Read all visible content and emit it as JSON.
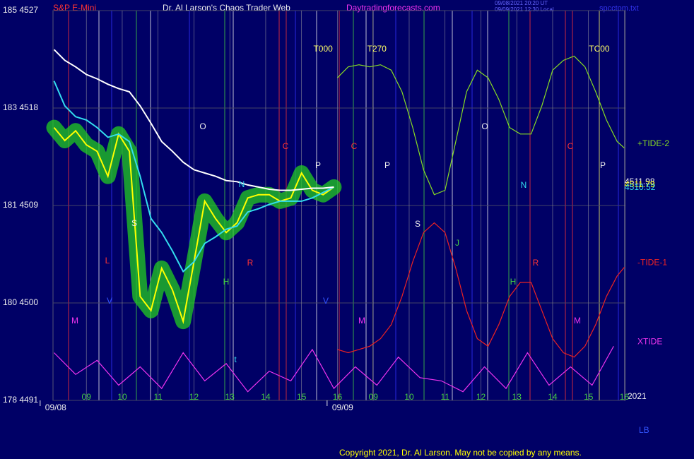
{
  "chart_data": {
    "type": "line",
    "title": "Dr. Al Larson's Chaos Trader Web",
    "symbol": "S&P E-Mini",
    "site": "Daytradingforecasts.com",
    "timestamps": [
      "09/08/2021 20:20 UT",
      "09/09/2021 12:30 Local"
    ],
    "file": "spcctom.txt",
    "copyright": "Copyright 2021, Dr. Al Larson. May not be copied by any means.",
    "corner_label": "LB",
    "year": "2021",
    "dates": [
      {
        "value": -0.5,
        "label": "09/08"
      },
      {
        "value": 7.5,
        "label": "09/09"
      }
    ],
    "cycle_labels": [
      {
        "value": 6.6,
        "label": "T000"
      },
      {
        "value": 8.1,
        "label": "T270"
      },
      {
        "value": 14.3,
        "label": "TC00"
      }
    ],
    "annotations": [
      "O",
      "P",
      "N",
      "S",
      "R",
      "M",
      "V",
      "H",
      "C",
      "J",
      "L",
      "t",
      "O",
      "P",
      "N",
      "S",
      "R",
      "M",
      "H",
      "C",
      "P",
      "M",
      "C",
      "V"
    ],
    "price_labels": [
      4511.98,
      4511.79,
      4510.52
    ],
    "xlim": [
      -0.93,
      15.03
    ],
    "xticks": [
      {
        "value": 0,
        "label": "09"
      },
      {
        "value": 1,
        "label": "10"
      },
      {
        "value": 2,
        "label": "11"
      },
      {
        "value": 3,
        "label": "12"
      },
      {
        "value": 4,
        "label": "13"
      },
      {
        "value": 5,
        "label": "14"
      },
      {
        "value": 6,
        "label": "15"
      },
      {
        "value": 7,
        "label": "16"
      },
      {
        "value": 8,
        "label": "09"
      },
      {
        "value": 9,
        "label": "10"
      },
      {
        "value": 10,
        "label": "11"
      },
      {
        "value": 11,
        "label": "12"
      },
      {
        "value": 12,
        "label": "13"
      },
      {
        "value": 13,
        "label": "14"
      },
      {
        "value": 14,
        "label": "15"
      },
      {
        "value": 15,
        "label": "16"
      }
    ],
    "ylim": [
      4491,
      4527
    ],
    "yticks": [
      {
        "value": 4527,
        "label": "185 4527"
      },
      {
        "value": 4518,
        "label": "183 4518"
      },
      {
        "value": 4509,
        "label": "181 4509"
      },
      {
        "value": 4500,
        "label": "180 4500"
      },
      {
        "value": 4491,
        "label": "178 4491"
      }
    ],
    "grid": true,
    "series": [
      {
        "name": "S&P E-Mini",
        "color": "#ffff00",
        "x": [
          -0.9,
          -0.6,
          -0.3,
          0,
          0.3,
          0.6,
          0.9,
          1.2,
          1.5,
          1.8,
          2.1,
          2.4,
          2.7,
          3.0,
          3.3,
          3.6,
          3.9,
          4.2,
          4.5,
          4.8,
          5.1,
          5.4,
          5.7,
          6.0,
          6.3,
          6.6,
          6.9
        ],
        "values": [
          4516.2,
          4515.0,
          4515.9,
          4514.6,
          4514.0,
          4511.7,
          4515.6,
          4514.0,
          4500.6,
          4499.3,
          4503.2,
          4501.2,
          4498.3,
          4503.8,
          4509.4,
          4507.8,
          4506.5,
          4507.4,
          4509.7,
          4510.0,
          4510.0,
          4509.4,
          4509.7,
          4512.0,
          4510.4,
          4510.0,
          4510.7
        ]
      },
      {
        "color": "#33ddee",
        "x": [
          -0.9,
          -0.6,
          -0.3,
          0,
          0.3,
          0.6,
          0.9,
          1.2,
          1.5,
          1.8,
          2.1,
          2.4,
          2.7,
          3.0,
          3.3,
          3.6,
          3.9,
          4.2,
          4.5,
          4.8,
          5.1,
          5.4,
          5.7,
          6.0,
          6.3,
          6.6,
          6.9
        ],
        "values": [
          4520.5,
          4518.2,
          4517.2,
          4516.9,
          4516.2,
          4515.3,
          4515.6,
          4514.9,
          4511.7,
          4507.8,
          4506.5,
          4504.8,
          4502.9,
          4503.8,
          4505.5,
          4506.1,
          4506.8,
          4507.1,
          4508.4,
          4508.7,
          4509.1,
          4509.4,
          4509.4,
          4509.4,
          4509.7,
          4510.2,
          4510.7
        ]
      },
      {
        "color": "#ffffff",
        "x": [
          -0.9,
          -0.6,
          -0.3,
          0,
          0.3,
          0.6,
          0.9,
          1.2,
          1.5,
          1.8,
          2.1,
          2.4,
          2.7,
          3.0,
          3.3,
          3.6,
          3.9,
          4.2,
          4.5,
          4.8,
          5.1,
          5.4,
          5.7,
          6.0,
          6.3,
          6.6,
          6.9
        ],
        "values": [
          4523.4,
          4522.4,
          4521.8,
          4521.1,
          4520.7,
          4520.2,
          4519.8,
          4519.5,
          4518.2,
          4516.6,
          4514.9,
          4514.0,
          4513.0,
          4512.3,
          4512.0,
          4511.7,
          4511.3,
          4511.2,
          4510.9,
          4510.7,
          4510.5,
          4510.4,
          4510.4,
          4510.5,
          4510.6,
          4510.6,
          4510.7
        ]
      },
      {
        "name": "+TIDE-2",
        "color": "#88dd22",
        "x": [
          7.0,
          7.3,
          7.6,
          7.9,
          8.2,
          8.5,
          8.8,
          9.1,
          9.4,
          9.7,
          10.0,
          10.3,
          10.6,
          10.9,
          11.2,
          11.5,
          11.8,
          12.1,
          12.4,
          12.7,
          13.0,
          13.3,
          13.6,
          13.9,
          14.2,
          14.5,
          14.8,
          15.0
        ],
        "values": [
          4520.8,
          4521.8,
          4522.0,
          4521.8,
          4522.0,
          4521.5,
          4519.5,
          4516.2,
          4512.3,
          4510.0,
          4510.4,
          4514.9,
          4519.5,
          4521.5,
          4520.8,
          4518.8,
          4516.2,
          4515.6,
          4515.6,
          4518.2,
          4521.5,
          4522.4,
          4522.8,
          4521.8,
          4519.5,
          4516.9,
          4514.9,
          4514.3
        ]
      },
      {
        "name": "-TIDE-1",
        "color": "#ee2222",
        "x": [
          7.0,
          7.3,
          7.6,
          7.9,
          8.2,
          8.5,
          8.8,
          9.1,
          9.4,
          9.7,
          10.0,
          10.3,
          10.6,
          10.9,
          11.2,
          11.5,
          11.8,
          12.1,
          12.4,
          12.7,
          13.0,
          13.3,
          13.6,
          13.9,
          14.2,
          14.5,
          14.8,
          15.0
        ],
        "values": [
          4495.7,
          4495.4,
          4495.7,
          4496.0,
          4496.7,
          4498.0,
          4500.6,
          4503.8,
          4506.5,
          4507.4,
          4506.5,
          4503.2,
          4499.3,
          4496.7,
          4496.0,
          4498.0,
          4500.6,
          4501.9,
          4501.9,
          4499.3,
          4496.7,
          4495.4,
          4495.0,
          4496.0,
          4498.0,
          4500.6,
          4502.5,
          4503.3
        ]
      },
      {
        "name": "XTIDE",
        "color": "#ee33ee",
        "x": [
          -0.9,
          -0.3,
          0.3,
          0.9,
          1.5,
          2.1,
          2.7,
          3.3,
          3.9,
          4.5,
          5.1,
          5.7,
          6.3,
          6.9,
          7.5,
          8.1,
          8.7,
          9.3,
          9.9,
          10.5,
          11.1,
          11.7,
          12.3,
          12.9,
          13.5,
          14.1,
          14.7
        ],
        "values": [
          4495.4,
          4493.4,
          4494.7,
          4492.4,
          4494.1,
          4492.1,
          4495.4,
          4492.8,
          4494.4,
          4491.8,
          4493.7,
          4492.8,
          4495.7,
          4492.1,
          4494.1,
          4492.4,
          4495.0,
          4493.1,
          4492.8,
          4491.8,
          4494.1,
          4492.1,
          4495.4,
          4492.4,
          4494.1,
          4492.4,
          4496.0
        ]
      }
    ]
  }
}
